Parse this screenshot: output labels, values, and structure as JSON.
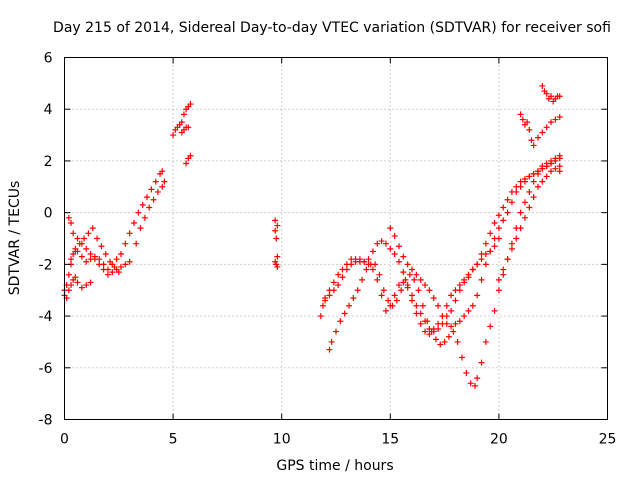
{
  "chart_data": {
    "type": "scatter",
    "title": "Day 215 of 2014, Sidereal Day-to-day VTEC variation (SDTVAR) for receiver sofi",
    "xlabel": "GPS time / hours",
    "ylabel": "SDTVAR / TECUs",
    "xlim": [
      0,
      25
    ],
    "ylim": [
      -8,
      6
    ],
    "xticks": [
      "0",
      "5",
      "10",
      "15",
      "20",
      "25"
    ],
    "yticks": [
      "-8",
      "-6",
      "-4",
      "-2",
      "0",
      "2",
      "4",
      "6"
    ],
    "grid": true,
    "marker": "plus",
    "color": "#ff0000",
    "series": [
      {
        "name": "SDTVAR",
        "x": [
          0.0,
          0.1,
          0.2,
          0.3,
          0.4,
          0.5,
          0.6,
          0.8,
          1.0,
          1.2,
          1.4,
          1.6,
          1.8,
          2.0,
          2.2,
          2.4,
          2.6,
          2.8,
          3.0,
          3.2,
          3.4,
          3.6,
          3.8,
          4.0,
          4.2,
          4.4,
          4.5,
          0.0,
          0.1,
          0.2,
          0.3,
          0.4,
          0.5,
          0.6,
          0.8,
          1.0,
          1.2,
          0.2,
          0.3,
          0.4,
          0.6,
          0.8,
          1.0,
          1.2,
          1.4,
          1.6,
          1.8,
          2.0,
          2.2,
          2.4,
          2.6,
          2.8,
          3.0,
          0.3,
          0.5,
          0.7,
          0.9,
          1.1,
          1.3,
          1.5,
          1.7,
          1.9,
          2.1,
          2.3,
          2.5,
          3.3,
          3.5,
          3.7,
          3.9,
          4.1,
          4.3,
          4.5,
          4.6,
          5.0,
          5.1,
          5.2,
          5.3,
          5.4,
          5.5,
          5.6,
          5.7,
          5.8,
          5.4,
          5.5,
          5.6,
          5.7,
          5.6,
          5.7,
          5.8,
          9.7,
          9.7,
          9.75,
          9.8,
          9.8,
          9.7,
          9.75,
          9.8,
          11.8,
          11.9,
          12.0,
          12.2,
          12.4,
          12.6,
          12.8,
          13.0,
          13.2,
          13.4,
          13.6,
          13.8,
          14.0,
          14.2,
          14.4,
          14.6,
          14.8,
          15.0,
          15.2,
          15.4,
          15.6,
          15.8,
          16.0,
          16.2,
          16.4,
          16.6,
          16.8,
          17.0,
          17.2,
          17.4,
          17.6,
          17.8,
          18.0,
          18.2,
          18.4,
          18.6,
          18.8,
          19.0,
          19.2,
          19.4,
          19.6,
          19.8,
          20.0,
          12.2,
          12.3,
          12.5,
          12.7,
          12.9,
          13.1,
          13.3,
          13.5,
          13.7,
          13.9,
          14.1,
          14.3,
          14.5,
          14.7,
          14.9,
          15.1,
          15.3,
          15.5,
          15.7,
          15.9,
          16.1,
          16.3,
          16.5,
          16.7,
          16.9,
          17.1,
          17.3,
          17.5,
          17.7,
          17.9,
          18.1,
          18.3,
          18.5,
          18.7,
          18.9,
          12.0,
          12.2,
          12.4,
          12.6,
          12.8,
          13.0,
          13.2,
          13.4,
          13.6,
          13.8,
          14.0,
          14.2,
          14.4,
          14.6,
          14.8,
          15.0,
          15.2,
          15.4,
          15.6,
          15.8,
          16.0,
          16.2,
          16.4,
          16.6,
          16.8,
          17.0,
          17.2,
          17.4,
          17.6,
          17.8,
          18.0,
          18.2,
          18.4,
          18.6,
          18.8,
          19.0,
          19.2,
          19.4,
          19.6,
          19.8,
          20.0,
          20.2,
          20.4,
          20.6,
          20.8,
          21.0,
          21.2,
          21.4,
          21.6,
          21.8,
          22.0,
          22.2,
          22.4,
          22.6,
          22.8,
          15.0,
          15.2,
          15.4,
          15.6,
          15.8,
          16.0,
          16.2,
          16.4,
          16.6,
          16.8,
          17.0,
          17.2,
          17.4,
          17.6,
          17.8,
          18.0,
          18.2,
          18.4,
          18.6,
          18.8,
          19.0,
          19.2,
          19.4,
          19.6,
          19.8,
          20.0,
          20.2,
          20.4,
          20.6,
          20.8,
          21.0,
          21.2,
          21.4,
          21.6,
          21.8,
          22.0,
          22.2,
          22.4,
          22.6,
          22.8,
          19.0,
          19.2,
          19.4,
          19.6,
          19.8,
          20.0,
          20.2,
          20.4,
          20.6,
          20.8,
          21.0,
          21.2,
          21.4,
          21.6,
          21.8,
          22.0,
          22.2,
          22.4,
          22.6,
          22.8,
          21.0,
          21.1,
          21.2,
          21.3,
          21.4,
          21.5,
          21.6,
          21.8,
          22.0,
          22.2,
          22.4,
          22.6,
          22.8,
          22.0,
          22.1,
          22.2,
          22.3,
          22.4,
          22.5,
          22.6,
          22.7,
          22.8,
          20.0,
          20.2,
          20.4,
          20.6,
          20.8,
          21.0,
          21.2,
          21.4,
          21.6,
          21.8,
          22.0,
          22.2,
          22.4,
          22.6,
          22.8
        ],
        "y": [
          -3.0,
          -2.8,
          -2.4,
          -2.0,
          -1.6,
          -1.4,
          -1.5,
          -1.7,
          -1.9,
          -1.8,
          -1.7,
          -1.8,
          -2.0,
          -2.2,
          -2.0,
          -1.8,
          -1.6,
          -1.2,
          -0.8,
          -0.4,
          0.0,
          0.3,
          0.6,
          0.9,
          1.2,
          1.5,
          1.6,
          -3.2,
          -3.3,
          -3.0,
          -2.8,
          -2.6,
          -2.5,
          -2.7,
          -2.9,
          -2.8,
          -2.7,
          -0.2,
          -0.4,
          -0.8,
          -1.0,
          -1.2,
          -1.4,
          -1.6,
          -1.8,
          -2.0,
          -2.2,
          -2.4,
          -2.3,
          -2.2,
          -2.1,
          -2.0,
          -1.9,
          -1.8,
          -1.5,
          -1.2,
          -1.0,
          -0.8,
          -0.6,
          -1.0,
          -1.3,
          -1.6,
          -1.9,
          -2.1,
          -2.3,
          -1.2,
          -0.6,
          -0.2,
          0.2,
          0.5,
          0.8,
          1.0,
          1.2,
          3.0,
          3.2,
          3.3,
          3.4,
          3.5,
          3.8,
          4.0,
          4.1,
          4.2,
          3.1,
          3.2,
          3.3,
          3.3,
          1.9,
          2.1,
          2.2,
          -0.3,
          -0.7,
          -1.0,
          -0.5,
          -1.7,
          -1.9,
          -2.0,
          -2.1,
          -4.0,
          -3.6,
          -3.3,
          -3.0,
          -2.7,
          -2.4,
          -2.2,
          -2.0,
          -1.8,
          -1.8,
          -1.9,
          -1.9,
          -1.8,
          -1.5,
          -1.2,
          -1.1,
          -1.2,
          -1.4,
          -1.6,
          -1.9,
          -2.3,
          -2.8,
          -3.4,
          -3.9,
          -4.3,
          -4.6,
          -4.7,
          -4.5,
          -4.3,
          -4.0,
          -3.6,
          -3.2,
          -3.0,
          -2.8,
          -2.7,
          -2.5,
          -2.2,
          -2.0,
          -1.8,
          -1.6,
          -1.5,
          -1.3,
          -1.0,
          -5.3,
          -5.0,
          -4.6,
          -4.2,
          -3.9,
          -3.6,
          -3.3,
          -3.0,
          -2.6,
          -2.2,
          -2.0,
          -2.0,
          -2.4,
          -3.0,
          -3.4,
          -3.6,
          -3.4,
          -3.0,
          -2.6,
          -2.4,
          -2.6,
          -3.0,
          -3.6,
          -4.2,
          -4.6,
          -4.9,
          -5.1,
          -5.0,
          -4.8,
          -4.6,
          -5.0,
          -5.6,
          -6.2,
          -6.6,
          -6.7,
          -3.4,
          -3.2,
          -3.0,
          -2.8,
          -2.5,
          -2.2,
          -2.0,
          -1.9,
          -1.8,
          -1.9,
          -2.0,
          -2.2,
          -2.6,
          -3.2,
          -3.8,
          -3.6,
          -3.2,
          -2.8,
          -2.7,
          -2.9,
          -3.2,
          -3.6,
          -3.9,
          -4.2,
          -4.5,
          -4.6,
          -4.5,
          -4.3,
          -4.0,
          -3.8,
          -3.4,
          -3.0,
          -2.6,
          -2.4,
          -2.2,
          -2.0,
          -1.6,
          -1.2,
          -0.8,
          -0.4,
          -0.1,
          0.2,
          0.5,
          0.8,
          1.0,
          1.2,
          1.3,
          1.4,
          1.5,
          1.6,
          1.7,
          1.8,
          1.9,
          2.0,
          2.1,
          -0.6,
          -0.9,
          -1.3,
          -1.7,
          -2.0,
          -2.2,
          -2.4,
          -2.6,
          -2.8,
          -3.0,
          -3.3,
          -3.6,
          -4.0,
          -4.3,
          -4.4,
          -4.3,
          -4.2,
          -4.0,
          -3.8,
          -3.6,
          -3.2,
          -2.6,
          -2.0,
          -1.5,
          -1.0,
          -0.6,
          -0.3,
          0.0,
          0.4,
          0.8,
          1.0,
          1.2,
          1.4,
          1.5,
          1.6,
          1.7,
          1.8,
          1.9,
          2.0,
          2.2,
          -6.4,
          -5.8,
          -5.0,
          -4.4,
          -3.8,
          -3.0,
          -2.4,
          -1.8,
          -1.2,
          -0.6,
          0.0,
          0.4,
          0.8,
          1.2,
          1.5,
          1.8,
          1.9,
          2.0,
          2.1,
          1.8,
          3.8,
          3.6,
          3.4,
          3.5,
          3.2,
          2.8,
          2.6,
          2.9,
          3.1,
          3.3,
          3.5,
          3.6,
          3.7,
          4.9,
          4.7,
          4.6,
          4.4,
          4.5,
          4.3,
          4.4,
          4.5,
          4.5,
          -2.6,
          -2.2,
          -1.8,
          -1.4,
          -1.0,
          -0.6,
          -0.2,
          0.2,
          0.6,
          1.0,
          1.2,
          1.4,
          1.6,
          1.7,
          1.6
        ]
      }
    ]
  }
}
